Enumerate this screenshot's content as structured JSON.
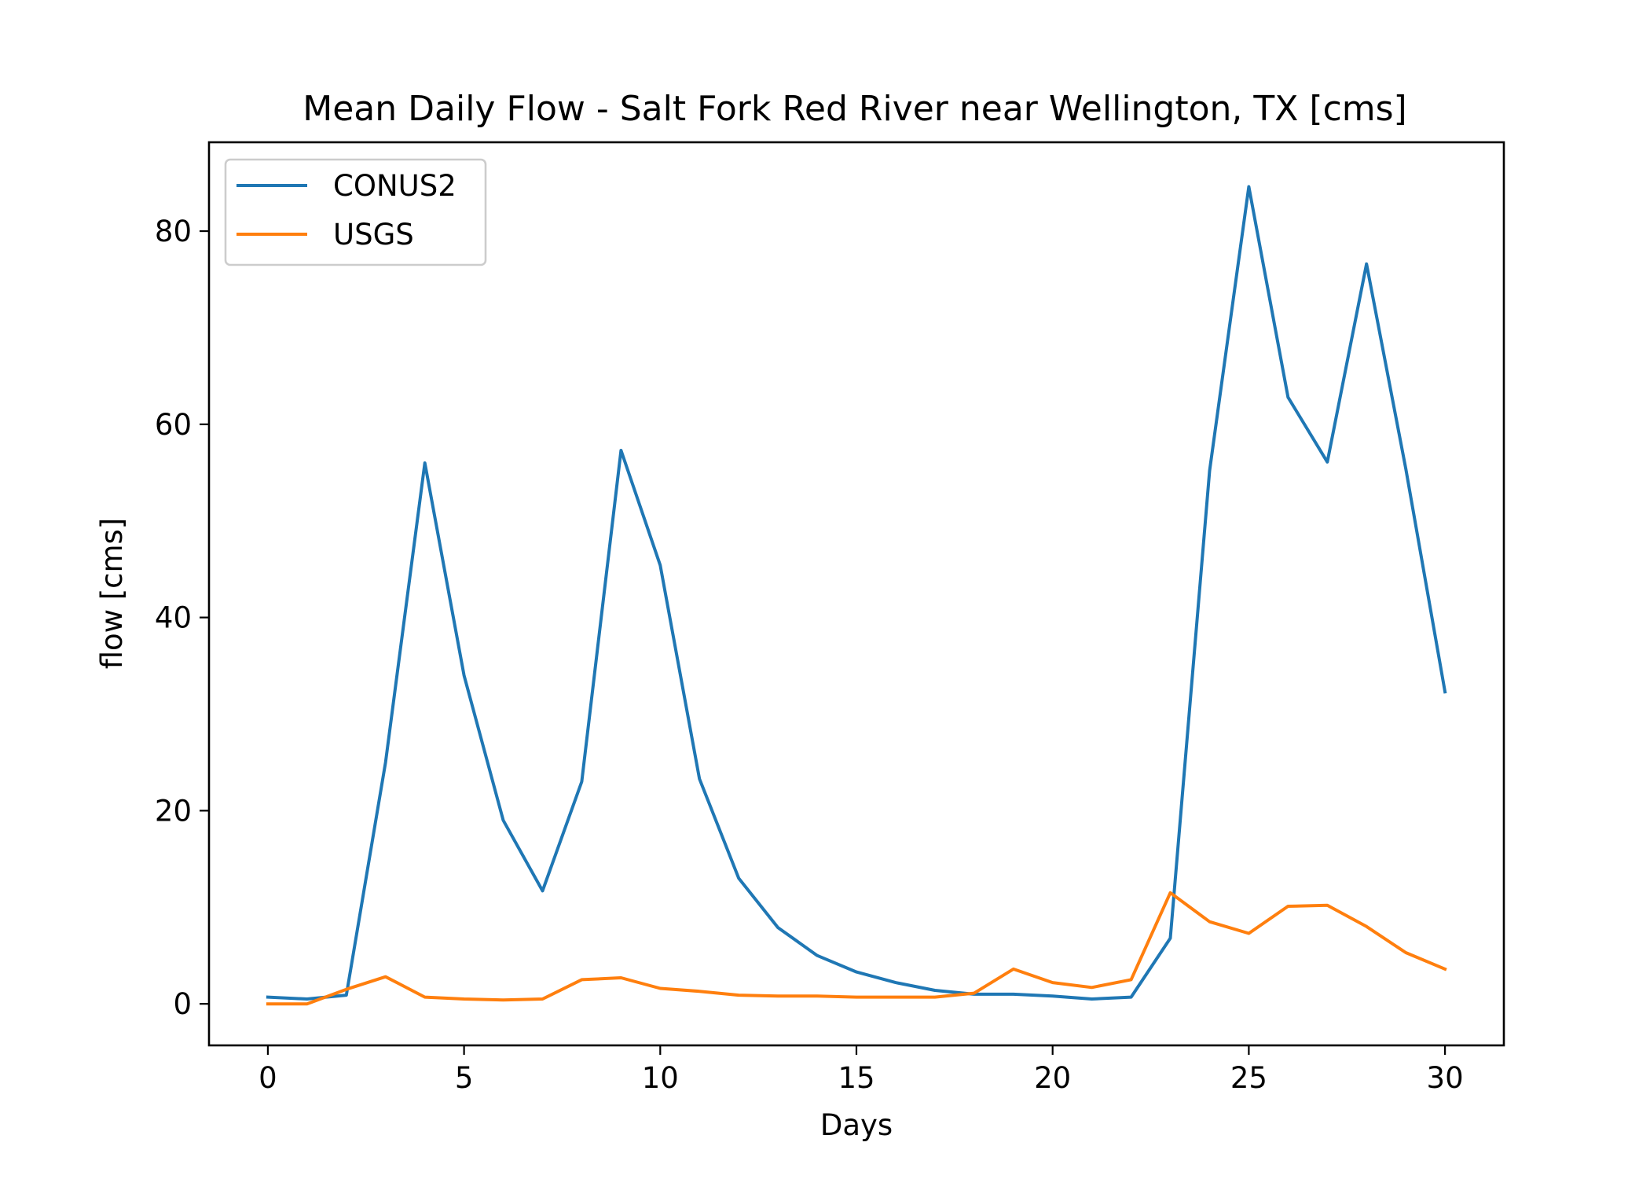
{
  "chart_data": {
    "type": "line",
    "title": "Mean Daily Flow - Salt Fork Red River near Wellington, TX [cms]",
    "xlabel": "Days",
    "ylabel": "flow [cms]",
    "xlim": [
      -1.5,
      31.5
    ],
    "ylim": [
      -4.3,
      89.2
    ],
    "xticks": [
      0,
      5,
      10,
      15,
      20,
      25,
      30
    ],
    "yticks": [
      0,
      20,
      40,
      60,
      80
    ],
    "legend_position": "upper-left",
    "x": [
      0,
      1,
      2,
      3,
      4,
      5,
      6,
      7,
      8,
      9,
      10,
      11,
      12,
      13,
      14,
      15,
      16,
      17,
      18,
      19,
      20,
      21,
      22,
      23,
      24,
      25,
      26,
      27,
      28,
      29,
      30
    ],
    "series": [
      {
        "name": "CONUS2",
        "color": "#1f77b4",
        "values": [
          0.7,
          0.5,
          0.9,
          25.0,
          56.0,
          34.0,
          19.0,
          11.7,
          23.0,
          57.3,
          45.4,
          23.3,
          13.0,
          7.9,
          5.0,
          3.3,
          2.2,
          1.4,
          1.0,
          1.0,
          0.8,
          0.5,
          0.7,
          6.8,
          55.2,
          84.6,
          62.8,
          56.1,
          76.6,
          55.4,
          32.3
        ]
      },
      {
        "name": "USGS",
        "color": "#ff7f0e",
        "values": [
          0.0,
          0.0,
          1.5,
          2.8,
          0.7,
          0.5,
          0.4,
          0.5,
          2.5,
          2.7,
          1.6,
          1.3,
          0.9,
          0.8,
          0.8,
          0.7,
          0.7,
          0.7,
          1.1,
          3.6,
          2.2,
          1.7,
          2.5,
          11.5,
          8.5,
          7.3,
          10.1,
          10.2,
          8.0,
          5.3,
          3.6
        ]
      }
    ]
  }
}
